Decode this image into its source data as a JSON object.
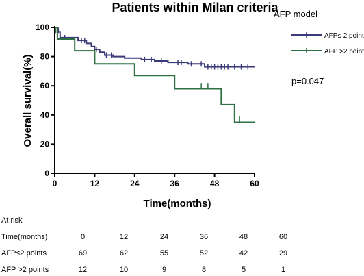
{
  "chart_data": {
    "type": "line",
    "title": "Patients within Milan criteria",
    "xlabel": "Time(months)",
    "ylabel": "Overall survival(%)",
    "xlim": [
      0,
      60
    ],
    "ylim": [
      0,
      100
    ],
    "xticks": [
      0,
      12,
      24,
      36,
      48,
      60
    ],
    "yticks": [
      0,
      20,
      40,
      60,
      80,
      100
    ],
    "grid": false,
    "legend": {
      "title": "AFP model",
      "placement": "top-right"
    },
    "annotation": "p=0.047",
    "series": [
      {
        "name": "AFP≤ 2 points",
        "color": "#3b3a78",
        "steps": [
          [
            0,
            100
          ],
          [
            0.8,
            97
          ],
          [
            1.6,
            93
          ],
          [
            7,
            91
          ],
          [
            9.5,
            89
          ],
          [
            11,
            87
          ],
          [
            12,
            85
          ],
          [
            13.5,
            83
          ],
          [
            15,
            81
          ],
          [
            17.5,
            80
          ],
          [
            21,
            79
          ],
          [
            26,
            78
          ],
          [
            30,
            77
          ],
          [
            34,
            76
          ],
          [
            40,
            75
          ],
          [
            45,
            73
          ],
          [
            60,
            73
          ]
        ],
        "censored": [
          [
            1.1,
            98
          ],
          [
            3,
            93
          ],
          [
            8,
            91
          ],
          [
            9,
            91
          ],
          [
            12.5,
            85
          ],
          [
            15.5,
            81
          ],
          [
            17,
            81
          ],
          [
            27,
            78
          ],
          [
            29,
            78
          ],
          [
            32,
            77
          ],
          [
            37,
            76
          ],
          [
            38,
            76
          ],
          [
            41,
            75
          ],
          [
            44,
            75
          ],
          [
            46,
            73
          ],
          [
            47,
            73
          ],
          [
            48,
            73
          ],
          [
            49,
            73
          ],
          [
            50,
            73
          ],
          [
            51,
            73
          ],
          [
            52,
            73
          ],
          [
            54,
            73
          ],
          [
            56,
            73
          ],
          [
            58,
            73
          ]
        ]
      },
      {
        "name": "AFP >2 points",
        "color": "#2e7042",
        "steps": [
          [
            0,
            100
          ],
          [
            0.8,
            92
          ],
          [
            6,
            84
          ],
          [
            12,
            75
          ],
          [
            24,
            67
          ],
          [
            36,
            58
          ],
          [
            50,
            47
          ],
          [
            54,
            35
          ],
          [
            60,
            35
          ]
        ],
        "censored": [
          [
            0.3,
            98
          ],
          [
            44,
            60
          ],
          [
            46,
            60
          ],
          [
            55.5,
            37
          ]
        ]
      }
    ],
    "risk_table": {
      "header": "At risk",
      "row_label_time": "Time(months)",
      "times": [
        "0",
        "12",
        "24",
        "36",
        "48",
        "60"
      ],
      "rows": [
        {
          "label": "AFP≤2 points",
          "values": [
            "69",
            "62",
            "55",
            "52",
            "42",
            "29"
          ]
        },
        {
          "label": "AFP >2 points",
          "values": [
            "12",
            "10",
            "9",
            "8",
            "5",
            "1"
          ]
        }
      ]
    }
  }
}
